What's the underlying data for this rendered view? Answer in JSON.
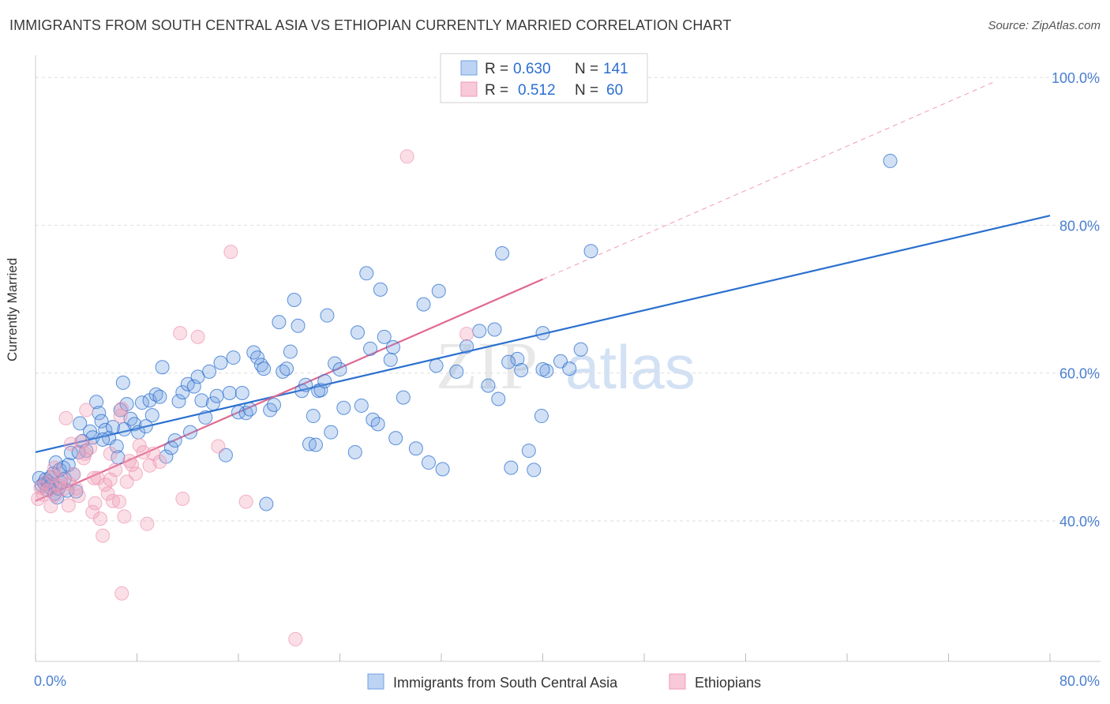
{
  "header": {
    "title": "IMMIGRANTS FROM SOUTH CENTRAL ASIA VS ETHIOPIAN CURRENTLY MARRIED CORRELATION CHART",
    "source": "Source: ZipAtlas.com"
  },
  "watermark": {
    "zip": "ZIP",
    "atlas": "atlas"
  },
  "colors": {
    "blue": "#6fa0e0",
    "blue_line": "#2a6fcf",
    "pink": "#f09ab5",
    "pink_line": "#e0688f",
    "axis_text": "#4a7fd0",
    "grid": "#dddddd"
  },
  "legend": {
    "rows": [
      {
        "r_label": "R =",
        "r_value": "0.630",
        "n_label": "N =",
        "n_value": "141"
      },
      {
        "r_label": "R =",
        "r_value": "0.512",
        "n_label": "N =",
        "n_value": "60"
      }
    ]
  },
  "chart_data": {
    "type": "scatter",
    "title": "IMMIGRANTS FROM SOUTH CENTRAL ASIA VS ETHIOPIAN CURRENTLY MARRIED CORRELATION CHART",
    "xlabel": "",
    "ylabel": "Currently Married",
    "xlim": [
      0,
      80
    ],
    "ylim": [
      21,
      103
    ],
    "x_tick_labels": [
      "0.0%",
      "80.0%"
    ],
    "y_ticks": [
      40,
      60,
      80,
      100
    ],
    "y_tick_labels": [
      "40.0%",
      "60.0%",
      "80.0%",
      "100.0%"
    ],
    "grid": true,
    "legend_position": "top-center",
    "series": [
      {
        "name": "Immigrants from South Central Asia",
        "color": "#6fa0e0",
        "stats": {
          "R": 0.63,
          "N": 141
        },
        "trend": {
          "x": [
            0,
            80
          ],
          "y": [
            49.3,
            81.3
          ]
        },
        "points": [
          [
            0.3,
            45.8
          ],
          [
            0.5,
            44.8
          ],
          [
            0.7,
            45.1
          ],
          [
            0.8,
            45.6
          ],
          [
            0.9,
            44.2
          ],
          [
            1.0,
            45.3
          ],
          [
            1.1,
            44.6
          ],
          [
            1.2,
            45.9
          ],
          [
            1.3,
            44.9
          ],
          [
            1.4,
            46.4
          ],
          [
            1.5,
            43.7
          ],
          [
            1.6,
            47.9
          ],
          [
            1.7,
            43.2
          ],
          [
            1.8,
            44.4
          ],
          [
            1.9,
            46.9
          ],
          [
            2.0,
            45.2
          ],
          [
            2.2,
            47.2
          ],
          [
            2.3,
            45.7
          ],
          [
            2.5,
            44.1
          ],
          [
            2.6,
            47.6
          ],
          [
            2.8,
            49.2
          ],
          [
            3.0,
            46.3
          ],
          [
            3.2,
            44.0
          ],
          [
            3.4,
            49.3
          ],
          [
            3.5,
            53.2
          ],
          [
            3.7,
            50.8
          ],
          [
            4.0,
            49.5
          ],
          [
            4.3,
            52.1
          ],
          [
            4.5,
            51.3
          ],
          [
            4.8,
            56.1
          ],
          [
            5.0,
            54.6
          ],
          [
            5.2,
            53.5
          ],
          [
            5.5,
            52.3
          ],
          [
            5.8,
            51.2
          ],
          [
            6.1,
            52.7
          ],
          [
            6.4,
            50.1
          ],
          [
            6.7,
            55.0
          ],
          [
            6.9,
            58.7
          ],
          [
            7.0,
            52.4
          ],
          [
            7.2,
            55.8
          ],
          [
            7.5,
            53.8
          ],
          [
            7.8,
            53.1
          ],
          [
            8.1,
            52.0
          ],
          [
            8.4,
            56.0
          ],
          [
            8.7,
            52.8
          ],
          [
            9.0,
            56.3
          ],
          [
            9.2,
            54.3
          ],
          [
            9.5,
            57.1
          ],
          [
            9.8,
            56.8
          ],
          [
            10.0,
            60.8
          ],
          [
            10.3,
            48.7
          ],
          [
            10.7,
            49.9
          ],
          [
            11.0,
            50.9
          ],
          [
            11.3,
            56.2
          ],
          [
            11.6,
            57.4
          ],
          [
            12.0,
            58.5
          ],
          [
            12.2,
            52.0
          ],
          [
            12.5,
            58.2
          ],
          [
            12.8,
            59.5
          ],
          [
            13.1,
            56.3
          ],
          [
            13.4,
            54.0
          ],
          [
            13.7,
            60.2
          ],
          [
            14.0,
            55.9
          ],
          [
            14.3,
            56.9
          ],
          [
            14.6,
            61.4
          ],
          [
            15.0,
            48.9
          ],
          [
            15.3,
            57.3
          ],
          [
            15.6,
            62.1
          ],
          [
            16.0,
            54.7
          ],
          [
            16.3,
            57.3
          ],
          [
            16.6,
            54.6
          ],
          [
            16.9,
            55.1
          ],
          [
            17.2,
            62.8
          ],
          [
            17.5,
            62.1
          ],
          [
            17.8,
            61.1
          ],
          [
            18.0,
            60.6
          ],
          [
            18.2,
            42.3
          ],
          [
            18.5,
            55.0
          ],
          [
            18.8,
            55.7
          ],
          [
            19.2,
            66.9
          ],
          [
            19.5,
            60.2
          ],
          [
            19.8,
            60.6
          ],
          [
            20.1,
            62.9
          ],
          [
            20.4,
            69.9
          ],
          [
            20.7,
            66.4
          ],
          [
            21.0,
            57.6
          ],
          [
            21.3,
            58.4
          ],
          [
            21.6,
            50.4
          ],
          [
            21.9,
            54.2
          ],
          [
            22.1,
            50.3
          ],
          [
            22.3,
            57.6
          ],
          [
            22.5,
            57.7
          ],
          [
            22.8,
            58.9
          ],
          [
            23.0,
            67.8
          ],
          [
            23.3,
            52.0
          ],
          [
            23.6,
            61.3
          ],
          [
            24.0,
            60.5
          ],
          [
            24.3,
            55.3
          ],
          [
            25.2,
            49.3
          ],
          [
            25.4,
            65.5
          ],
          [
            25.7,
            55.6
          ],
          [
            26.1,
            73.5
          ],
          [
            26.4,
            63.3
          ],
          [
            26.6,
            53.7
          ],
          [
            27.0,
            53.1
          ],
          [
            27.2,
            71.3
          ],
          [
            27.5,
            64.9
          ],
          [
            28.0,
            61.8
          ],
          [
            28.2,
            63.5
          ],
          [
            28.4,
            51.2
          ],
          [
            29.0,
            56.7
          ],
          [
            30.0,
            49.8
          ],
          [
            30.6,
            69.3
          ],
          [
            31.0,
            47.9
          ],
          [
            31.6,
            61.0
          ],
          [
            31.8,
            71.1
          ],
          [
            32.1,
            47.0
          ],
          [
            33.2,
            60.2
          ],
          [
            34.0,
            63.6
          ],
          [
            35.0,
            65.7
          ],
          [
            35.7,
            58.3
          ],
          [
            36.2,
            65.9
          ],
          [
            36.5,
            56.5
          ],
          [
            37.5,
            47.2
          ],
          [
            38.0,
            61.9
          ],
          [
            38.3,
            60.4
          ],
          [
            38.9,
            49.5
          ],
          [
            39.3,
            46.9
          ],
          [
            39.9,
            54.2
          ],
          [
            40.0,
            65.4
          ],
          [
            40.3,
            60.3
          ],
          [
            41.4,
            61.6
          ],
          [
            42.1,
            60.6
          ],
          [
            43.0,
            63.2
          ],
          [
            36.8,
            76.2
          ],
          [
            43.8,
            76.5
          ],
          [
            67.4,
            88.7
          ],
          [
            37.3,
            61.5
          ],
          [
            40.0,
            60.5
          ],
          [
            5.3,
            51.0
          ],
          [
            6.5,
            48.6
          ]
        ]
      },
      {
        "name": "Ethiopians",
        "color": "#f09ab5",
        "stats": {
          "R": 0.512,
          "N": 60
        },
        "trend": {
          "x": [
            0,
            40
          ],
          "y": [
            42.7,
            72.7
          ]
        },
        "points": [
          [
            0.2,
            43.0
          ],
          [
            0.4,
            44.5
          ],
          [
            0.6,
            43.6
          ],
          [
            0.8,
            45.2
          ],
          [
            1.0,
            44.1
          ],
          [
            1.2,
            42.0
          ],
          [
            1.4,
            46.1
          ],
          [
            1.6,
            43.5
          ],
          [
            1.8,
            44.8
          ],
          [
            2.0,
            45.6
          ],
          [
            2.2,
            44.3
          ],
          [
            2.4,
            53.9
          ],
          [
            2.6,
            42.1
          ],
          [
            2.8,
            50.4
          ],
          [
            3.0,
            46.3
          ],
          [
            3.2,
            44.4
          ],
          [
            3.4,
            43.4
          ],
          [
            3.6,
            50.7
          ],
          [
            3.8,
            48.5
          ],
          [
            4.0,
            55.0
          ],
          [
            4.3,
            49.9
          ],
          [
            4.5,
            41.2
          ],
          [
            4.7,
            42.4
          ],
          [
            4.9,
            45.8
          ],
          [
            5.1,
            40.3
          ],
          [
            5.3,
            38.0
          ],
          [
            5.5,
            44.9
          ],
          [
            5.7,
            43.7
          ],
          [
            5.9,
            45.6
          ],
          [
            6.1,
            42.7
          ],
          [
            6.3,
            46.9
          ],
          [
            6.6,
            42.6
          ],
          [
            6.8,
            55.2
          ],
          [
            7.0,
            40.6
          ],
          [
            7.2,
            45.3
          ],
          [
            7.4,
            48.1
          ],
          [
            7.6,
            47.6
          ],
          [
            7.9,
            46.4
          ],
          [
            8.2,
            50.2
          ],
          [
            8.5,
            49.3
          ],
          [
            8.8,
            39.6
          ],
          [
            9.0,
            47.5
          ],
          [
            9.3,
            49.1
          ],
          [
            9.8,
            48.0
          ],
          [
            11.4,
            65.4
          ],
          [
            11.6,
            43.0
          ],
          [
            12.8,
            64.9
          ],
          [
            14.4,
            50.1
          ],
          [
            15.4,
            76.4
          ],
          [
            16.6,
            42.6
          ],
          [
            20.5,
            24.0
          ],
          [
            29.3,
            89.3
          ],
          [
            34.0,
            65.3
          ],
          [
            6.8,
            30.2
          ],
          [
            1.5,
            47.2
          ],
          [
            2.7,
            45.0
          ],
          [
            3.9,
            49.1
          ],
          [
            4.6,
            45.8
          ],
          [
            5.9,
            49.1
          ],
          [
            6.7,
            54.2
          ]
        ]
      }
    ]
  }
}
